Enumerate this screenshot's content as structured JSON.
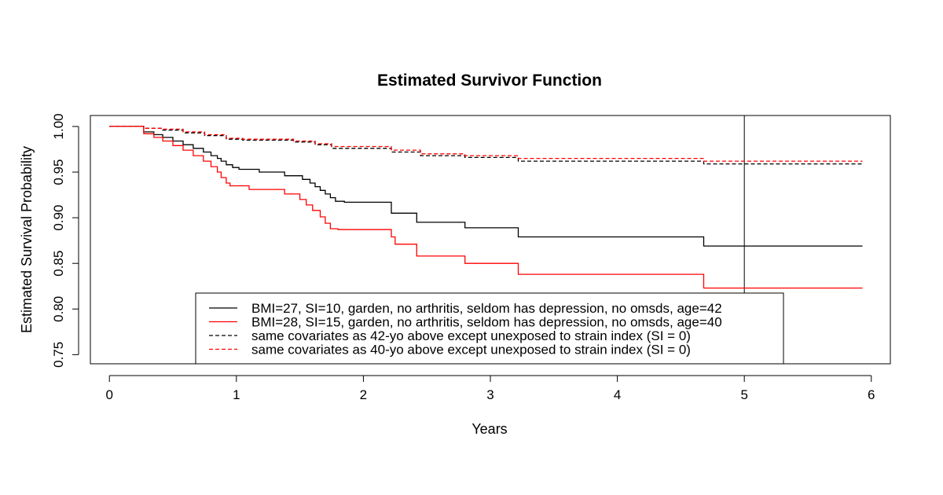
{
  "chart_data": {
    "type": "line",
    "title": "Estimated Survivor Function",
    "xlabel": "Years",
    "ylabel": "Estimated Survival Probability",
    "xlim": [
      -0.15,
      6.15
    ],
    "ylim": [
      0.74,
      1.012
    ],
    "x_ticks": [
      0,
      1,
      2,
      3,
      4,
      5,
      6
    ],
    "y_ticks": [
      0.75,
      0.8,
      0.85,
      0.9,
      0.95,
      1.0
    ],
    "x_tick_labels": [
      "0",
      "1",
      "2",
      "3",
      "4",
      "5",
      "6"
    ],
    "y_tick_labels": [
      "0.75",
      "0.80",
      "0.85",
      "0.90",
      "0.95",
      "1.00"
    ],
    "reference_line_x": 5,
    "grid": false,
    "legend_position": "bottom-center",
    "step": true,
    "series": [
      {
        "name": "BMI=27, SI=10, garden, no arthritis, seldom has depression, no omsds, age=42",
        "color": "#000000",
        "dash": "solid",
        "x": [
          0,
          0.27,
          0.35,
          0.42,
          0.5,
          0.58,
          0.66,
          0.74,
          0.8,
          0.85,
          0.88,
          0.92,
          0.97,
          1.02,
          1.18,
          1.38,
          1.52,
          1.58,
          1.62,
          1.66,
          1.7,
          1.74,
          1.78,
          1.85,
          2.22,
          2.25,
          2.42,
          2.45,
          2.8,
          3.22,
          4.68,
          5.93
        ],
        "y": [
          1.0,
          0.994,
          0.991,
          0.988,
          0.984,
          0.98,
          0.976,
          0.972,
          0.968,
          0.965,
          0.962,
          0.958,
          0.955,
          0.953,
          0.95,
          0.946,
          0.942,
          0.938,
          0.934,
          0.93,
          0.926,
          0.922,
          0.918,
          0.917,
          0.905,
          0.905,
          0.895,
          0.895,
          0.889,
          0.879,
          0.869,
          0.869
        ]
      },
      {
        "name": "BMI=28, SI=15, garden, no arthritis, seldom has depression, no omsds, age=40",
        "color": "#ff0000",
        "dash": "solid",
        "x": [
          0,
          0.27,
          0.35,
          0.42,
          0.5,
          0.58,
          0.66,
          0.74,
          0.8,
          0.85,
          0.88,
          0.92,
          0.95,
          1.1,
          1.38,
          1.5,
          1.55,
          1.6,
          1.66,
          1.7,
          1.74,
          1.8,
          2.22,
          2.25,
          2.42,
          2.8,
          3.22,
          4.68,
          5.93
        ],
        "y": [
          1.0,
          0.992,
          0.988,
          0.984,
          0.979,
          0.974,
          0.968,
          0.962,
          0.956,
          0.95,
          0.944,
          0.938,
          0.935,
          0.931,
          0.926,
          0.92,
          0.914,
          0.908,
          0.901,
          0.894,
          0.888,
          0.887,
          0.879,
          0.871,
          0.858,
          0.85,
          0.838,
          0.823,
          0.823
        ]
      },
      {
        "name": "same covariates as 42-yo above except unexposed to strain index (SI = 0)",
        "color": "#000000",
        "dash": "dashed",
        "x": [
          0,
          0.27,
          0.42,
          0.58,
          0.75,
          0.92,
          1.05,
          1.45,
          1.62,
          1.75,
          2.22,
          2.45,
          2.8,
          3.22,
          4.68,
          5.93
        ],
        "y": [
          1.0,
          0.998,
          0.996,
          0.993,
          0.99,
          0.986,
          0.985,
          0.983,
          0.98,
          0.976,
          0.972,
          0.968,
          0.966,
          0.962,
          0.959,
          0.959
        ]
      },
      {
        "name": "same covariates as 40-yo above except unexposed to strain index (SI = 0)",
        "color": "#ff0000",
        "dash": "dashed",
        "x": [
          0,
          0.27,
          0.42,
          0.58,
          0.75,
          0.92,
          1.05,
          1.45,
          1.62,
          1.75,
          2.22,
          2.45,
          2.8,
          3.22,
          4.68,
          5.93
        ],
        "y": [
          1.0,
          0.998,
          0.997,
          0.994,
          0.991,
          0.987,
          0.986,
          0.984,
          0.981,
          0.978,
          0.974,
          0.97,
          0.968,
          0.965,
          0.962,
          0.962
        ]
      }
    ]
  }
}
